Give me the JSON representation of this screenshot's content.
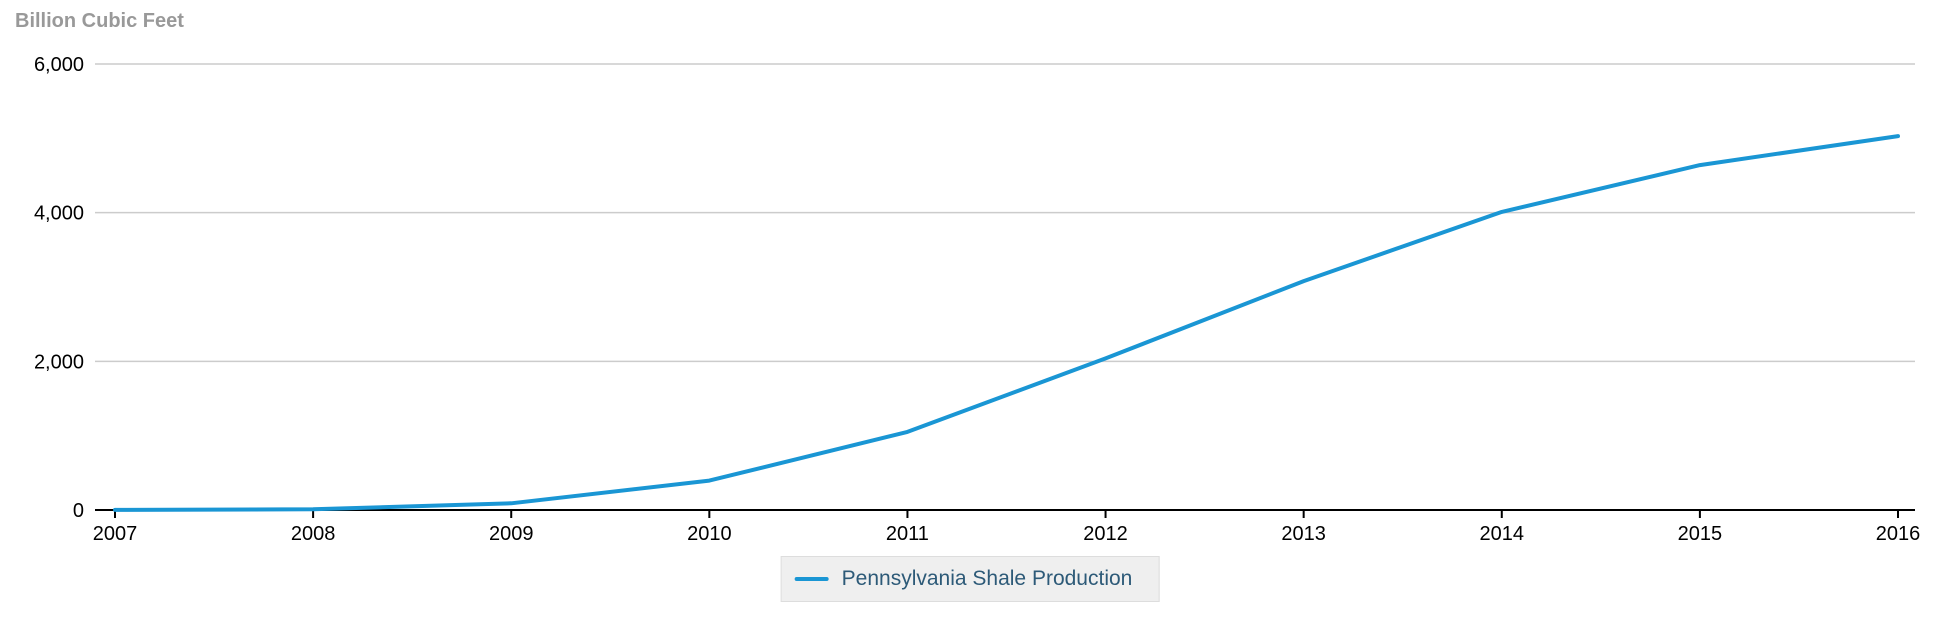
{
  "header": {
    "title": "Billion Cubic Feet"
  },
  "chart_data": {
    "type": "line",
    "title": "Billion Cubic Feet",
    "x": [
      "2007",
      "2008",
      "2009",
      "2010",
      "2011",
      "2012",
      "2013",
      "2014",
      "2015",
      "2016"
    ],
    "series": [
      {
        "name": "Pennsylvania Shale Production",
        "color": "#1a96d4",
        "values": [
          2,
          10,
          90,
          395,
          1050,
          2040,
          3080,
          4010,
          4640,
          5030
        ]
      }
    ],
    "xlabel": "",
    "ylabel": "Billion Cubic Feet",
    "ylim": [
      0,
      6000
    ],
    "yticks": [
      {
        "value": 0,
        "label": "0"
      },
      {
        "value": 2000,
        "label": "2,000"
      },
      {
        "value": 4000,
        "label": "4,000"
      },
      {
        "value": 6000,
        "label": "6,000"
      }
    ],
    "grid": "horizontal-only",
    "legend_position": "bottom-center"
  },
  "legend": {
    "items": [
      {
        "label": "Pennsylvania Shale Production",
        "swatch": "line"
      }
    ]
  },
  "colors": {
    "series_blue": "#1a96d4",
    "gridline": "#cccccc",
    "axis": "#000000",
    "axis_label": "#000000",
    "title_gray": "#999999",
    "legend_text": "#2d5a78",
    "legend_bg": "#efefef",
    "legend_border": "#dddddd",
    "background": "#ffffff"
  }
}
